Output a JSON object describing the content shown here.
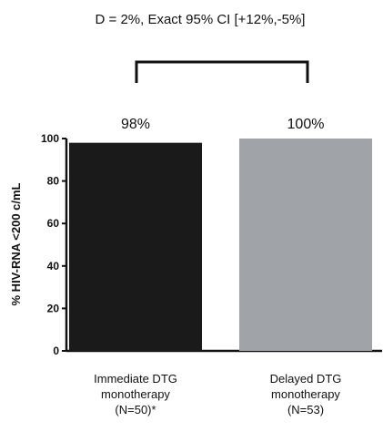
{
  "title": "D = 2%, Exact 95% CI [+12%,-5%]",
  "chart_data": {
    "type": "bar",
    "categories": [
      [
        "Immediate DTG",
        "monotherapy",
        "(N=50)*"
      ],
      [
        "Delayed DTG",
        "monotherapy",
        "(N=53)"
      ]
    ],
    "values": [
      98,
      100
    ],
    "value_labels": [
      "98%",
      "100%"
    ],
    "colors": [
      "#1a1a1a",
      "#a0a3a8"
    ],
    "ylabel": "% HIV-RNA <200 c/mL",
    "ylim": [
      0,
      100
    ],
    "yticks": [
      0,
      20,
      40,
      60,
      80,
      100
    ],
    "comparison_bracket": true,
    "grid": false
  }
}
